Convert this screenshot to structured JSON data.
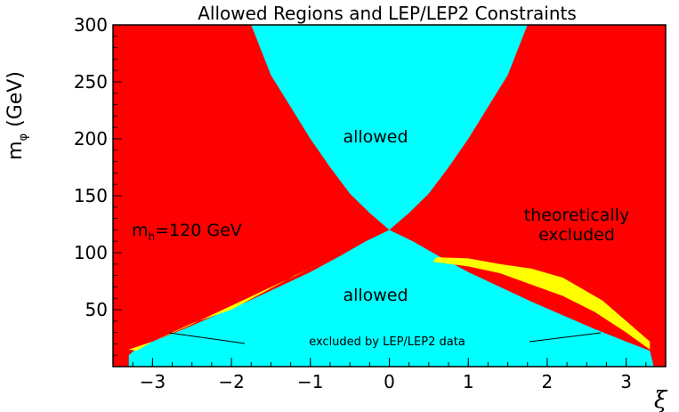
{
  "chart_data": {
    "type": "area",
    "title": "Allowed Regions and LEP/LEP2 Constraints",
    "xlabel": "ξ",
    "ylabel_main": "m",
    "ylabel_sub": "φ",
    "ylabel_unit": "(GeV)",
    "xlim": [
      -3.5,
      3.5
    ],
    "ylim": [
      0,
      300
    ],
    "xticks": [
      -3,
      -2,
      -1,
      0,
      1,
      2,
      3
    ],
    "xtick_labels": [
      "−3",
      "−2",
      "−1",
      "0",
      "1",
      "2",
      "3"
    ],
    "yticks": [
      50,
      100,
      150,
      200,
      250,
      300
    ],
    "ytick_labels": [
      "50",
      "100",
      "150",
      "200",
      "250",
      "300"
    ],
    "colors": {
      "excluded_theory": "#ff0000",
      "allowed": "#00ffff",
      "excluded_lep": "#ffff00",
      "frame": "#000000"
    },
    "regions": {
      "allowed_upper_boundary": {
        "x": [
          -1.75,
          -1.5,
          -1.25,
          -1.0,
          -0.75,
          -0.5,
          -0.25,
          0.0,
          0.25,
          0.5,
          0.75,
          1.0,
          1.25,
          1.5,
          1.75
        ],
        "y": [
          300,
          256,
          228,
          200,
          175,
          152,
          135,
          120,
          135,
          152,
          175,
          200,
          228,
          256,
          300
        ]
      },
      "allowed_lower_boundary": {
        "x": [
          -3.3,
          -3.3,
          -3.2,
          -3.0,
          -2.6,
          -2.2,
          -1.8,
          -1.4,
          -1.0,
          -0.6,
          -0.3,
          0.0,
          0.3,
          0.6,
          1.0,
          1.4,
          1.8,
          2.2,
          2.6,
          3.0,
          3.3,
          3.35
        ],
        "y": [
          0,
          10,
          16,
          22,
          33,
          45,
          57,
          70,
          83,
          98,
          110,
          120,
          110,
          98,
          83,
          70,
          57,
          45,
          33,
          22,
          14,
          0
        ]
      },
      "lep_excluded_left": {
        "x": [
          -3.2,
          -3.0,
          -2.6,
          -2.2,
          -1.8,
          -1.4,
          -1.0,
          -0.6,
          -0.8,
          -1.2,
          -1.6,
          -2.0,
          -2.5,
          -3.0,
          -3.3
        ],
        "y": [
          14,
          22,
          34,
          47,
          60,
          73,
          86,
          98,
          92,
          80,
          65,
          50,
          38,
          22,
          15
        ]
      },
      "lep_excluded_right": {
        "x": [
          0.55,
          1.0,
          1.4,
          1.8,
          2.2,
          2.6,
          3.0,
          3.3,
          3.3,
          3.0,
          2.7,
          2.4,
          2.2,
          1.8,
          1.4,
          1.0,
          0.6
        ],
        "y": [
          92,
          88,
          82,
          72,
          62,
          48,
          30,
          15,
          22,
          40,
          58,
          70,
          78,
          86,
          90,
          95,
          96
        ]
      }
    },
    "annotations": {
      "allowed_top": "allowed",
      "allowed_bottom": "allowed",
      "higgs_mass_main": "m",
      "higgs_mass_sub": "h",
      "higgs_mass_value": "=120 GeV",
      "theory_line1": "theoretically",
      "theory_line2": "excluded",
      "lep_note": "excluded by LEP/LEP2 data"
    }
  }
}
